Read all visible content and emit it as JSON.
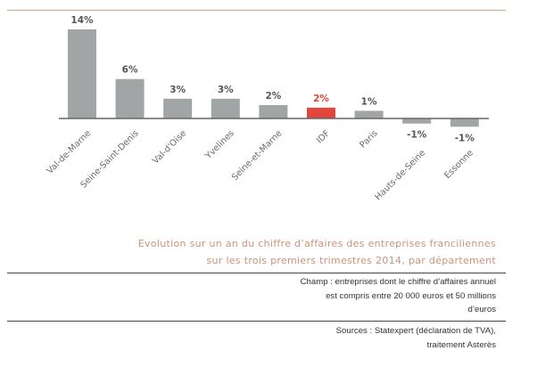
{
  "chart_data": {
    "type": "bar",
    "title": "Evolution sur un an du chiffre d'affaires des entreprises franciliennes sur les trois premiers trimestres 2014, par département",
    "xlabel": "",
    "ylabel": "",
    "ylim": [
      -1.5,
      14
    ],
    "grid": false,
    "categories": [
      "Val-de-Marne",
      "Seine-Saint-Denis",
      "Val-d'Oise",
      "Yvelines",
      "Seine-et-Marne",
      "IDF",
      "Paris",
      "Hauts-de-Seine",
      "Essonne"
    ],
    "values": [
      14,
      6,
      3,
      3,
      2,
      2,
      1,
      -1,
      -1
    ],
    "plot_values": [
      14,
      6.2,
      3.1,
      3.1,
      2.1,
      1.7,
      1.2,
      -0.8,
      -1.3
    ],
    "labels": [
      "14%",
      "6%",
      "3%",
      "3%",
      "2%",
      "2%",
      "1%",
      "-1%",
      "-1%"
    ],
    "highlight": "IDF",
    "colors": {
      "bar": "#a2a5a5",
      "highlight": "#e1473b",
      "label": "#555555",
      "axis": "#666666"
    }
  },
  "caption": {
    "line1": "Evolution sur un an du chiffre d’affaires des entreprises franciliennes",
    "line2": "sur les trois premiers trimestres 2014, par département"
  },
  "notes": {
    "champ_line1": "Champ : entreprises dont le chiffre d’affaires annuel",
    "champ_line2": "est compris entre 20 000 euros et 50 millions",
    "champ_line3": "d’euros",
    "sources_line1": "Sources : Statexpert (déclaration de TVA),",
    "sources_line2": "traitement Asterès"
  }
}
